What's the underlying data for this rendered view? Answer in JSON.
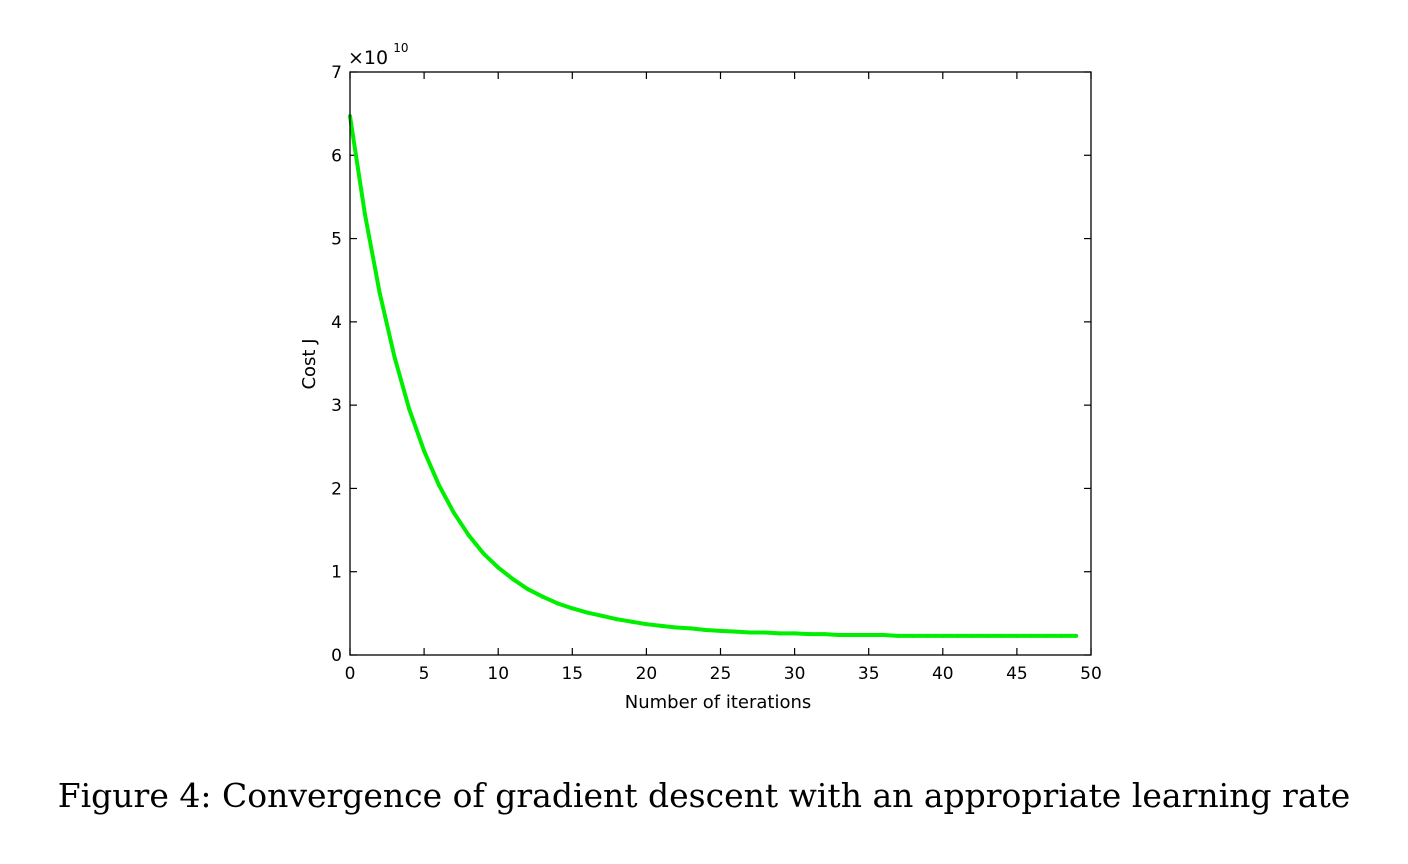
{
  "caption": "Figure 4: Convergence of gradient descent with an appropriate learning rate",
  "chart_data": {
    "type": "line",
    "title": "",
    "xlabel": "Number of iterations",
    "ylabel": "Cost J",
    "y_exponent_label": "×10",
    "y_exponent_power": "10",
    "y_multiplier": 10000000000,
    "xlim": [
      0,
      50
    ],
    "ylim": [
      0,
      7
    ],
    "xticks": [
      0,
      5,
      10,
      15,
      20,
      25,
      30,
      35,
      40,
      45,
      50
    ],
    "yticks": [
      0,
      1,
      2,
      3,
      4,
      5,
      6,
      7
    ],
    "grid": false,
    "legend": false,
    "series": [
      {
        "color": "#00ee00",
        "x": [
          0,
          1,
          2,
          3,
          4,
          5,
          6,
          7,
          8,
          9,
          10,
          11,
          12,
          13,
          14,
          15,
          16,
          17,
          18,
          19,
          20,
          21,
          22,
          23,
          24,
          25,
          26,
          27,
          28,
          29,
          30,
          31,
          32,
          33,
          34,
          35,
          36,
          37,
          38,
          39,
          40,
          41,
          42,
          43,
          44,
          45,
          46,
          47,
          48,
          49
        ],
        "y": [
          6.47,
          5.3,
          4.35,
          3.58,
          2.95,
          2.45,
          2.04,
          1.71,
          1.44,
          1.22,
          1.05,
          0.91,
          0.79,
          0.7,
          0.62,
          0.56,
          0.51,
          0.47,
          0.43,
          0.4,
          0.37,
          0.35,
          0.33,
          0.32,
          0.3,
          0.29,
          0.28,
          0.27,
          0.27,
          0.26,
          0.26,
          0.25,
          0.25,
          0.24,
          0.24,
          0.24,
          0.24,
          0.23,
          0.23,
          0.23,
          0.23,
          0.23,
          0.23,
          0.23,
          0.23,
          0.23,
          0.23,
          0.23,
          0.23,
          0.23
        ]
      }
    ]
  }
}
